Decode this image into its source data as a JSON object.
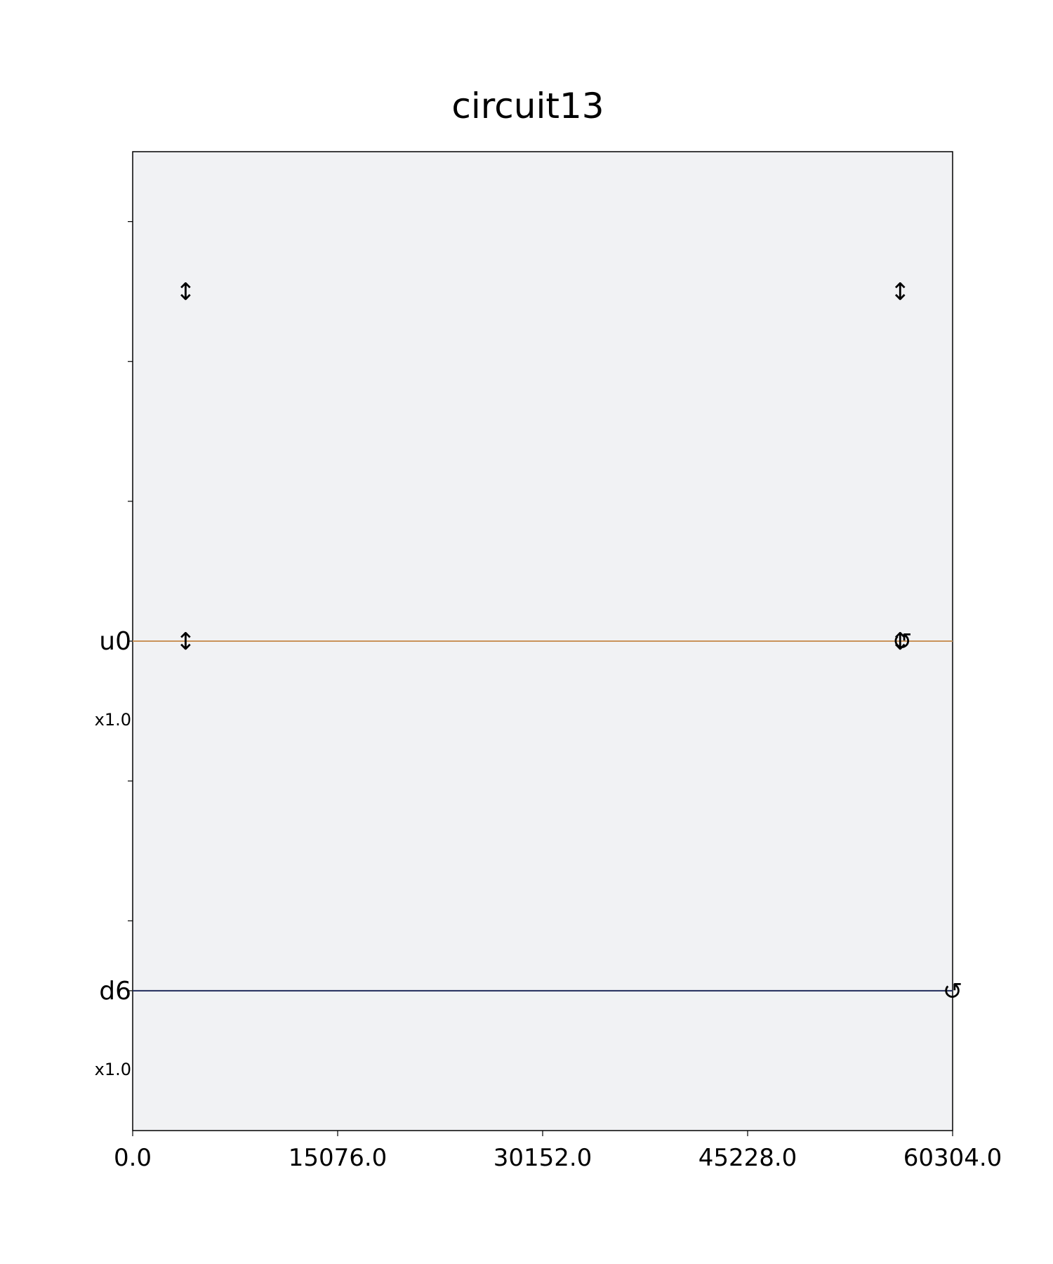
{
  "chart_data": {
    "type": "pulse-schedule",
    "title": "circuit13",
    "xlabel": "",
    "ylabel": "",
    "xlim": [
      0.0,
      60304.0
    ],
    "x_ticks": [
      "0.0",
      "15076.0",
      "30152.0",
      "45228.0",
      "60304.0"
    ],
    "background": "#f1f2f4",
    "channels": [
      {
        "name": "u0",
        "scale": "x1.0",
        "color": "#c9935a",
        "y": 0
      },
      {
        "name": "d6",
        "scale": "x1.0",
        "color": "#1f2a5a",
        "y": -2.5
      }
    ],
    "markers": [
      {
        "x": 3900,
        "y": 2.5,
        "symbol": "↕"
      },
      {
        "x": 56450,
        "y": 2.5,
        "symbol": "↕"
      },
      {
        "x": 3900,
        "y": 0,
        "symbol": "↕"
      },
      {
        "x": 56450,
        "y": 0,
        "symbol": "↕"
      },
      {
        "x": 56600,
        "y": 0,
        "symbol": "↺"
      },
      {
        "x": 60304,
        "y": -2.5,
        "symbol": "↺"
      }
    ],
    "ylim": [
      -3.5,
      3.5
    ],
    "minor_y_ticks": [
      3,
      2,
      1,
      -1,
      -2
    ]
  }
}
